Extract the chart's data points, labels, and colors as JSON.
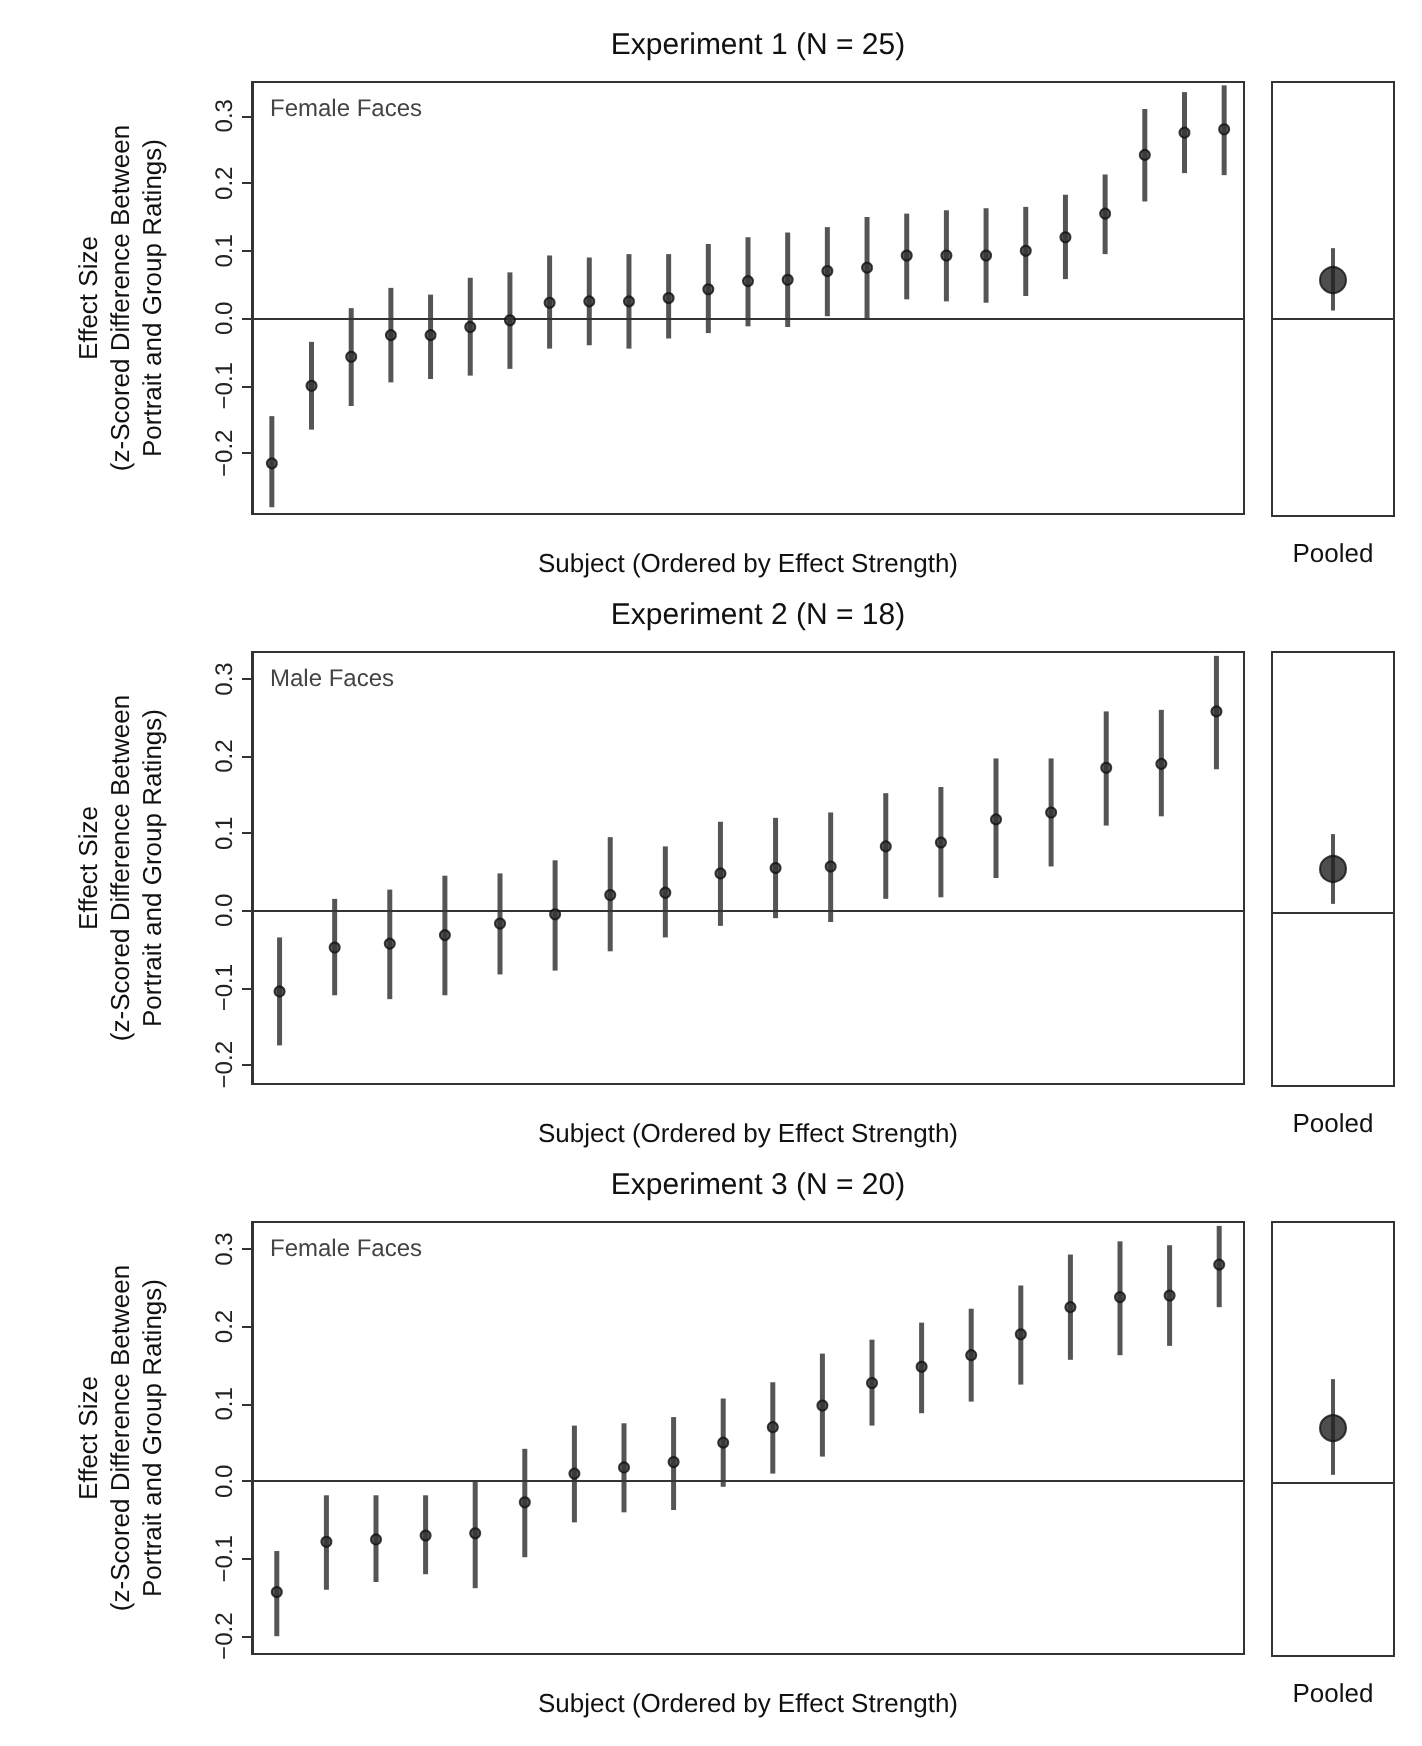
{
  "chart_data": [
    {
      "type": "scatter",
      "title": "Experiment 1 (N = 25)",
      "xlabel": "Subject (Ordered by Effect Strength)",
      "ylabel": "Effect Size\n(z-Scored Difference Between\nPortrait and Group Ratings)",
      "annotations": [
        "Female Faces"
      ],
      "categories": [
        null,
        null,
        null,
        null,
        null,
        null,
        null,
        null,
        null,
        null,
        null,
        null,
        null,
        null,
        null,
        null,
        null,
        null,
        null,
        null,
        null,
        null,
        null,
        null,
        null
      ],
      "values": [
        -0.215,
        -0.1,
        -0.057,
        -0.025,
        -0.025,
        -0.013,
        -0.003,
        0.023,
        0.025,
        0.025,
        0.03,
        0.043,
        0.055,
        0.057,
        0.07,
        0.075,
        0.093,
        0.093,
        0.093,
        0.1,
        0.12,
        0.155,
        0.242,
        0.275,
        0.28
      ],
      "errors": [
        [
          -0.28,
          -0.145
        ],
        [
          -0.165,
          -0.035
        ],
        [
          -0.13,
          0.015
        ],
        [
          -0.095,
          0.045
        ],
        [
          -0.09,
          0.035
        ],
        [
          -0.085,
          0.06
        ],
        [
          -0.075,
          0.068
        ],
        [
          -0.045,
          0.093
        ],
        [
          -0.04,
          0.09
        ],
        [
          -0.045,
          0.095
        ],
        [
          -0.03,
          0.095
        ],
        [
          -0.022,
          0.11
        ],
        [
          -0.012,
          0.12
        ],
        [
          -0.013,
          0.127
        ],
        [
          0.003,
          0.135
        ],
        [
          0.0,
          0.15
        ],
        [
          0.028,
          0.155
        ],
        [
          0.025,
          0.16
        ],
        [
          0.023,
          0.163
        ],
        [
          0.033,
          0.165
        ],
        [
          0.058,
          0.183
        ],
        [
          0.095,
          0.213
        ],
        [
          0.173,
          0.31
        ],
        [
          0.215,
          0.335
        ],
        [
          0.212,
          0.345
        ]
      ],
      "color": "#333333",
      "marker": "circle",
      "ylim": [
        -0.29,
        0.35
      ],
      "yticks": [
        {
          "value": -0.2,
          "label": "−0.2"
        },
        {
          "value": -0.1,
          "label": "−0.1"
        },
        {
          "value": 0,
          "label": "0.0"
        },
        0.1,
        0.2,
        0.3
      ],
      "tick_labels": "y",
      "grid": false,
      "ref_lines": [
        {
          "axis": "y",
          "value": 0,
          "label": null,
          "color": "#333333"
        }
      ]
    },
    {
      "type": "scatter",
      "categories": [
        "Pooled"
      ],
      "values": [
        0.058
      ],
      "errors": [
        [
          0.013,
          0.105
        ]
      ],
      "color": "#222222",
      "marker": "circle",
      "ylim": [
        -0.29,
        0.35
      ],
      "tick_labels": "x",
      "grid": false,
      "ref_lines": [
        {
          "axis": "y",
          "value": 0,
          "label": null,
          "color": "#333333"
        }
      ]
    },
    {
      "type": "scatter",
      "title": "Experiment 2 (N = 18)",
      "xlabel": "Subject (Ordered by Effect Strength)",
      "ylabel": "Effect Size\n(z-Scored Difference Between\nPortrait and Group Ratings)",
      "annotations": [
        "Male Faces"
      ],
      "categories": [
        null,
        null,
        null,
        null,
        null,
        null,
        null,
        null,
        null,
        null,
        null,
        null,
        null,
        null,
        null,
        null,
        null,
        null
      ],
      "values": [
        -0.105,
        -0.048,
        -0.043,
        -0.032,
        -0.017,
        -0.005,
        0.02,
        0.023,
        0.048,
        0.055,
        0.057,
        0.083,
        0.088,
        0.118,
        0.127,
        0.185,
        0.19,
        0.258
      ],
      "errors": [
        [
          -0.175,
          -0.035
        ],
        [
          -0.11,
          0.015
        ],
        [
          -0.115,
          0.027
        ],
        [
          -0.11,
          0.045
        ],
        [
          -0.083,
          0.048
        ],
        [
          -0.078,
          0.065
        ],
        [
          -0.053,
          0.095
        ],
        [
          -0.035,
          0.083
        ],
        [
          -0.02,
          0.115
        ],
        [
          -0.01,
          0.12
        ],
        [
          -0.015,
          0.127
        ],
        [
          0.015,
          0.152
        ],
        [
          0.017,
          0.16
        ],
        [
          0.042,
          0.197
        ],
        [
          0.057,
          0.197
        ],
        [
          0.11,
          0.258
        ],
        [
          0.122,
          0.26
        ],
        [
          0.183,
          0.33
        ]
      ],
      "color": "#333333",
      "marker": "circle",
      "ylim": [
        -0.225,
        0.335
      ],
      "yticks": [
        {
          "value": -0.2,
          "label": "−0.2"
        },
        {
          "value": -0.1,
          "label": "−0.1"
        },
        {
          "value": 0,
          "label": "0.0"
        },
        0.1,
        0.2,
        0.3
      ],
      "tick_labels": "y",
      "grid": false,
      "ref_lines": [
        {
          "axis": "y",
          "value": 0,
          "label": null,
          "color": "#333333"
        }
      ]
    },
    {
      "type": "scatter",
      "categories": [
        "Pooled"
      ],
      "values": [
        0.055
      ],
      "errors": [
        [
          0.01,
          0.1
        ]
      ],
      "color": "#222222",
      "marker": "circle",
      "ylim": [
        -0.225,
        0.335
      ],
      "tick_labels": "x",
      "grid": false,
      "ref_lines": [
        {
          "axis": "y",
          "value": 0,
          "label": null,
          "color": "#333333"
        }
      ]
    },
    {
      "type": "scatter",
      "title": "Experiment 3 (N = 20)",
      "xlabel": "Subject (Ordered by Effect Strength)",
      "ylabel": "Effect Size\n(z-Scored Difference Between\nPortrait and Group Ratings)",
      "annotations": [
        "Female Faces"
      ],
      "categories": [
        null,
        null,
        null,
        null,
        null,
        null,
        null,
        null,
        null,
        null,
        null,
        null,
        null,
        null,
        null,
        null,
        null,
        null,
        null,
        null
      ],
      "values": [
        -0.143,
        -0.078,
        -0.075,
        -0.07,
        -0.067,
        -0.027,
        0.01,
        0.018,
        0.025,
        0.05,
        0.07,
        0.098,
        0.127,
        0.148,
        0.163,
        0.19,
        0.225,
        0.238,
        0.24,
        0.28
      ],
      "errors": [
        [
          -0.2,
          -0.09
        ],
        [
          -0.14,
          -0.018
        ],
        [
          -0.13,
          -0.018
        ],
        [
          -0.12,
          -0.018
        ],
        [
          -0.138,
          0.0
        ],
        [
          -0.098,
          0.042
        ],
        [
          -0.053,
          0.072
        ],
        [
          -0.04,
          0.075
        ],
        [
          -0.037,
          0.083
        ],
        [
          -0.007,
          0.107
        ],
        [
          0.01,
          0.128
        ],
        [
          0.032,
          0.165
        ],
        [
          0.072,
          0.183
        ],
        [
          0.088,
          0.205
        ],
        [
          0.103,
          0.223
        ],
        [
          0.125,
          0.253
        ],
        [
          0.157,
          0.293
        ],
        [
          0.163,
          0.31
        ],
        [
          0.175,
          0.305
        ],
        [
          0.225,
          0.33
        ]
      ],
      "color": "#333333",
      "marker": "circle",
      "ylim": [
        -0.223,
        0.335
      ],
      "yticks": [
        {
          "value": -0.2,
          "label": "−0.2"
        },
        {
          "value": -0.1,
          "label": "−0.1"
        },
        {
          "value": 0,
          "label": "0.0"
        },
        0.1,
        0.2,
        0.3
      ],
      "tick_labels": "y",
      "grid": false,
      "ref_lines": [
        {
          "axis": "y",
          "value": 0,
          "label": null,
          "color": "#333333"
        }
      ]
    },
    {
      "type": "scatter",
      "categories": [
        "Pooled"
      ],
      "values": [
        0.07
      ],
      "errors": [
        [
          0.01,
          0.133
        ]
      ],
      "color": "#222222",
      "marker": "circle",
      "ylim": [
        -0.223,
        0.335
      ],
      "tick_labels": "x",
      "grid": false,
      "ref_lines": [
        {
          "axis": "y",
          "value": 0,
          "label": null,
          "color": "#333333"
        }
      ]
    }
  ]
}
